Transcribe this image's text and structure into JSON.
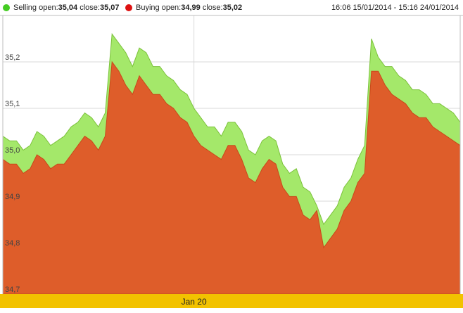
{
  "legend": {
    "selling": {
      "label": "Selling",
      "open_label": "open:",
      "open": "35,04",
      "close_label": "close:",
      "close": "35,07",
      "color": "#44cc22"
    },
    "buying": {
      "label": "Buying",
      "open_label": "open:",
      "open": "34,99",
      "close_label": "close:",
      "close": "35,02",
      "color": "#dd1111"
    }
  },
  "date_range": "16:06 15/01/2014 - 15:16 24/01/2014",
  "chart_data": {
    "type": "area",
    "ylim": [
      34.7,
      35.3
    ],
    "y_ticks": [
      34.7,
      34.8,
      34.9,
      35.0,
      35.1,
      35.2
    ],
    "y_tick_labels": [
      "34,7",
      "34,8",
      "34,9",
      "35,0",
      "35,1",
      "35,2"
    ],
    "x_tick_labels": [
      {
        "index": 28,
        "label": "Jan 20"
      }
    ],
    "grid": true,
    "fill_colors": {
      "selling": "#a4e86a",
      "buying": "#de5d2a"
    },
    "navigator_color": "#f2c200",
    "series": [
      {
        "name": "Selling",
        "values": [
          35.04,
          35.03,
          35.03,
          35.01,
          35.02,
          35.05,
          35.04,
          35.02,
          35.03,
          35.04,
          35.06,
          35.07,
          35.09,
          35.08,
          35.06,
          35.09,
          35.26,
          35.24,
          35.22,
          35.19,
          35.23,
          35.22,
          35.19,
          35.19,
          35.17,
          35.16,
          35.14,
          35.13,
          35.1,
          35.08,
          35.06,
          35.06,
          35.04,
          35.07,
          35.07,
          35.05,
          35.01,
          35.0,
          35.03,
          35.04,
          35.03,
          34.98,
          34.96,
          34.97,
          34.93,
          34.92,
          34.89,
          34.85,
          34.87,
          34.89,
          34.93,
          34.95,
          34.99,
          35.02,
          35.25,
          35.21,
          35.19,
          35.19,
          35.17,
          35.16,
          35.14,
          35.14,
          35.13,
          35.11,
          35.11,
          35.1,
          35.09,
          35.07
        ]
      },
      {
        "name": "Buying",
        "values": [
          34.99,
          34.98,
          34.98,
          34.96,
          34.97,
          35.0,
          34.99,
          34.97,
          34.98,
          34.98,
          35.0,
          35.02,
          35.04,
          35.03,
          35.01,
          35.04,
          35.2,
          35.18,
          35.15,
          35.13,
          35.17,
          35.15,
          35.13,
          35.13,
          35.11,
          35.1,
          35.08,
          35.07,
          35.04,
          35.02,
          35.01,
          35.0,
          34.99,
          35.02,
          35.02,
          34.99,
          34.95,
          34.94,
          34.97,
          34.99,
          34.98,
          34.93,
          34.91,
          34.91,
          34.87,
          34.86,
          34.88,
          34.8,
          34.82,
          34.84,
          34.88,
          34.9,
          34.94,
          34.96,
          35.18,
          35.18,
          35.15,
          35.13,
          35.12,
          35.11,
          35.09,
          35.08,
          35.08,
          35.06,
          35.05,
          35.04,
          35.03,
          35.02
        ]
      }
    ]
  }
}
